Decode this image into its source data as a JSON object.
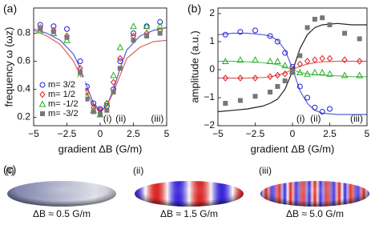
{
  "chart_data": [
    {
      "type": "line",
      "panel_label": "(a)",
      "xlabel": "gradient ΔB (G/m)",
      "ylabel": "frequency ω (ωz)",
      "xlim": [
        -5,
        5
      ],
      "ylim": [
        0.14,
        0.98
      ],
      "xticks": [
        {
          "value": -5,
          "label": "−5"
        },
        {
          "value": -2.5,
          "label": "−2.5"
        },
        0,
        2.5,
        5
      ],
      "yticks": [
        0.2,
        0.4,
        0.6,
        0.8
      ],
      "legend": "lower left",
      "annotations": [
        "(i)",
        "(ii)",
        "(iii)"
      ],
      "series": [
        {
          "color": "#5b5bd6",
          "marker": "none",
          "x": [
            -5,
            -4,
            -3,
            -2,
            -1.5,
            -1,
            -0.5,
            0,
            0.5,
            1,
            1.5,
            2,
            3,
            4,
            5
          ],
          "values": [
            0.83,
            0.8,
            0.75,
            0.65,
            0.55,
            0.42,
            0.3,
            0.25,
            0.28,
            0.4,
            0.55,
            0.68,
            0.78,
            0.82,
            0.84
          ]
        },
        {
          "color": "#e06060",
          "marker": "none",
          "x": [
            -5,
            -4,
            -3,
            -2,
            -1.5,
            -1,
            -0.5,
            0,
            0.5,
            1,
            1.5,
            2,
            3,
            4,
            5
          ],
          "values": [
            0.82,
            0.78,
            0.72,
            0.6,
            0.5,
            0.38,
            0.28,
            0.24,
            0.28,
            0.38,
            0.5,
            0.62,
            0.7,
            0.74,
            0.75
          ]
        },
        {
          "name": "m= 3/2",
          "color": "#1f1fd8",
          "marker": "o",
          "x": [
            -4.5,
            -3.5,
            -2.5,
            -1.5,
            -1,
            -0.5,
            0,
            0.5,
            1,
            1.5,
            2.5,
            3.5,
            4.5
          ],
          "values": [
            0.86,
            0.85,
            0.83,
            0.6,
            0.42,
            0.3,
            0.26,
            0.28,
            0.4,
            0.6,
            0.8,
            0.85,
            0.88
          ]
        },
        {
          "name": "m= 1/2",
          "color": "#e02020",
          "marker": "d",
          "x": [
            -4.5,
            -3.5,
            -2.5,
            -1.5,
            -1,
            -0.5,
            0,
            0.5,
            1,
            1.5,
            2.5,
            3.5,
            4.5
          ],
          "values": [
            0.84,
            0.82,
            0.78,
            0.55,
            0.38,
            0.27,
            0.25,
            0.3,
            0.45,
            0.62,
            0.78,
            0.8,
            0.82
          ]
        },
        {
          "name": "m= -1/2",
          "color": "#20b020",
          "marker": "^",
          "x": [
            -4.5,
            -3.5,
            -2.5,
            -1.5,
            -1,
            -0.5,
            0,
            0.5,
            1,
            1.5,
            2.5,
            3.5,
            4.5
          ],
          "values": [
            0.82,
            0.8,
            0.75,
            0.5,
            0.35,
            0.25,
            0.22,
            0.3,
            0.5,
            0.7,
            0.85,
            0.85,
            0.85
          ]
        },
        {
          "name": "m= -3/2",
          "color": "#777777",
          "marker": "s",
          "x": [
            -4.5,
            -3.5,
            -2.5,
            -1.5,
            -1,
            -0.5,
            0,
            0.5,
            1,
            1.5,
            2.5,
            3.5,
            4.5
          ],
          "values": [
            0.83,
            0.81,
            0.77,
            0.52,
            0.33,
            0.24,
            0.22,
            0.25,
            0.38,
            0.55,
            0.75,
            0.78,
            0.8
          ]
        }
      ]
    },
    {
      "type": "line",
      "panel_label": "(b)",
      "xlabel": "gradient ΔB (G/m)",
      "ylabel": "amplitude (a.u.)",
      "xlim": [
        -5,
        5
      ],
      "ylim": [
        -2,
        2.2
      ],
      "xticks": [
        {
          "value": -5,
          "label": "−5"
        },
        {
          "value": -2.5,
          "label": "−2.5"
        },
        0,
        2.5,
        5
      ],
      "yticks": [
        {
          "value": -2,
          "label": "−2"
        },
        {
          "value": -1,
          "label": "−1"
        },
        0,
        1,
        2
      ],
      "annotations": [
        "(i)",
        "(ii)",
        "(iii)"
      ],
      "series": [
        {
          "color": "#5b5bd6",
          "marker": "none",
          "x": [
            -5,
            -4,
            -3,
            -2,
            -1.5,
            -1,
            -0.5,
            0,
            0.5,
            1,
            1.5,
            2,
            3,
            4,
            5
          ],
          "values": [
            1.25,
            1.3,
            1.3,
            1.25,
            1.2,
            1.05,
            0.7,
            0.05,
            -0.75,
            -1.2,
            -1.45,
            -1.55,
            -1.6,
            -1.6,
            -1.6
          ]
        },
        {
          "color": "#222222",
          "marker": "none",
          "x": [
            -5,
            -4,
            -3,
            -2,
            -1.5,
            -1,
            -0.5,
            0,
            0.5,
            1,
            1.5,
            2,
            3,
            4,
            5
          ],
          "values": [
            -1.5,
            -1.45,
            -1.4,
            -1.3,
            -1.2,
            -1.05,
            -0.7,
            -0.05,
            0.75,
            1.25,
            1.5,
            1.6,
            1.65,
            1.6,
            1.6
          ]
        },
        {
          "color": "#e06060",
          "marker": "none",
          "x": [
            -5,
            -4,
            -3,
            -2,
            -1.5,
            -1,
            -0.5,
            0,
            0.5,
            1,
            1.5,
            2,
            3,
            4,
            5
          ],
          "values": [
            -0.3,
            -0.3,
            -0.3,
            -0.28,
            -0.25,
            -0.2,
            -0.12,
            0,
            0.12,
            0.2,
            0.25,
            0.28,
            0.3,
            0.3,
            0.3
          ]
        },
        {
          "color": "#60c060",
          "marker": "none",
          "x": [
            -5,
            -4,
            -3,
            -2,
            -1.5,
            -1,
            -0.5,
            0,
            0.5,
            1,
            1.5,
            2,
            3,
            4,
            5
          ],
          "values": [
            0.3,
            0.3,
            0.28,
            0.25,
            0.22,
            0.18,
            0.1,
            0,
            -0.1,
            -0.15,
            -0.18,
            -0.2,
            -0.22,
            -0.25,
            -0.25
          ]
        },
        {
          "color": "#1f1fd8",
          "marker": "o",
          "x": [
            -4.5,
            -3.5,
            -2.5,
            -1.5,
            -1,
            -0.5,
            0,
            0.5,
            1,
            1.5,
            2,
            2.5
          ],
          "values": [
            1.25,
            1.35,
            1.4,
            1.2,
            1.0,
            0.6,
            0.1,
            -0.6,
            -1.0,
            -1.35,
            -1.5,
            -1.4
          ]
        },
        {
          "color": "#e02020",
          "marker": "d",
          "x": [
            -4.5,
            -3.5,
            -2.5,
            -1.5,
            -1,
            -0.5,
            0,
            0.5,
            1,
            1.5,
            2,
            2.5,
            3.5,
            4.5
          ],
          "values": [
            -0.3,
            -0.3,
            -0.3,
            -0.25,
            -0.2,
            -0.15,
            0,
            0.2,
            0.3,
            0.35,
            0.4,
            0.4,
            0.35,
            0.3
          ]
        },
        {
          "color": "#20b020",
          "marker": "^",
          "x": [
            -4.5,
            -3.5,
            -2.5,
            -1.5,
            -1,
            -0.5,
            0,
            0.5,
            1,
            1.5,
            2,
            2.5,
            3.5,
            4.5
          ],
          "values": [
            0.3,
            0.35,
            0.35,
            0.3,
            0.3,
            0.15,
            -0.05,
            -0.1,
            -0.15,
            -0.1,
            -0.1,
            -0.15,
            -0.2,
            -0.2
          ]
        },
        {
          "color": "#777777",
          "marker": "s",
          "x": [
            -4.5,
            -3.5,
            -2.5,
            -1.5,
            -1,
            -0.5,
            0,
            0.5,
            1,
            1.5,
            2,
            2.5,
            3.5,
            4.5
          ],
          "values": [
            -1.2,
            -1.1,
            -0.95,
            -0.8,
            -0.6,
            -0.4,
            -0.1,
            0.5,
            1.5,
            1.8,
            1.85,
            1.6,
            1.3,
            1.1
          ]
        }
      ]
    }
  ],
  "panel_c": {
    "label": "(c)",
    "images": [
      {
        "tag": "(i)",
        "caption": "ΔB ≈ 0.5 G/m"
      },
      {
        "tag": "(ii)",
        "caption": "ΔB ≈ 1.5 G/m"
      },
      {
        "tag": "(iii)",
        "caption": "ΔB ≈ 5.0 G/m"
      }
    ]
  }
}
